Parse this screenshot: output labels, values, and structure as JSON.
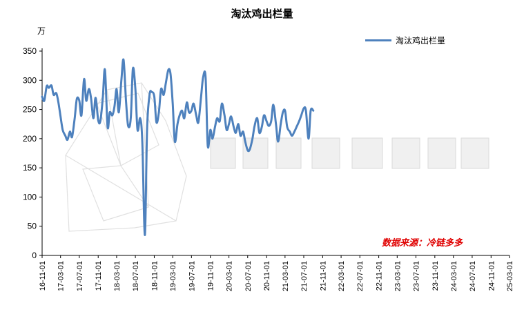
{
  "chart_data": {
    "type": "line",
    "title": "淘汰鸡出栏量",
    "unit_label": "万",
    "ylim": [
      0,
      350
    ],
    "yticks": [
      0,
      50,
      100,
      150,
      200,
      250,
      300,
      350
    ],
    "x_tick_labels": [
      "16-11-01",
      "17-03-01",
      "17-07-01",
      "17-11-01",
      "18-03-01",
      "18-07-01",
      "18-11-01",
      "19-03-01",
      "19-07-01",
      "19-11-01",
      "20-03-01",
      "20-07-01",
      "20-11-01",
      "21-03-01",
      "21-07-01",
      "21-11-01",
      "22-03-01",
      "22-07-01",
      "22-11-01",
      "23-03-01",
      "23-07-01",
      "23-11-01",
      "24-03-01",
      "24-07-01",
      "24-11-01",
      "25-03-01"
    ],
    "x_range": [
      "16-11-01",
      "25-03-01"
    ],
    "legend_position": "top-right",
    "grid": false,
    "series": [
      {
        "name": "淘汰鸡出栏量",
        "color": "#4e81bd",
        "points": [
          [
            "16-11-01",
            272
          ],
          [
            "16-11-15",
            265
          ],
          [
            "16-12-01",
            290
          ],
          [
            "16-12-15",
            287
          ],
          [
            "17-01-01",
            291
          ],
          [
            "17-01-15",
            275
          ],
          [
            "17-02-01",
            278
          ],
          [
            "17-02-15",
            262
          ],
          [
            "17-03-01",
            238
          ],
          [
            "17-03-15",
            215
          ],
          [
            "17-04-01",
            205
          ],
          [
            "17-04-15",
            198
          ],
          [
            "17-05-01",
            212
          ],
          [
            "17-05-15",
            203
          ],
          [
            "17-06-01",
            235
          ],
          [
            "17-06-15",
            268
          ],
          [
            "17-07-01",
            265
          ],
          [
            "17-07-15",
            240
          ],
          [
            "17-08-01",
            302
          ],
          [
            "17-08-15",
            265
          ],
          [
            "17-09-01",
            285
          ],
          [
            "17-09-15",
            270
          ],
          [
            "17-10-01",
            235
          ],
          [
            "17-10-15",
            270
          ],
          [
            "17-11-01",
            232
          ],
          [
            "17-11-15",
            230
          ],
          [
            "17-12-01",
            270
          ],
          [
            "17-12-15",
            318
          ],
          [
            "18-01-01",
            220
          ],
          [
            "18-01-15",
            245
          ],
          [
            "18-02-01",
            240
          ],
          [
            "18-02-15",
            255
          ],
          [
            "18-03-01",
            285
          ],
          [
            "18-03-15",
            245
          ],
          [
            "18-04-01",
            300
          ],
          [
            "18-04-15",
            335
          ],
          [
            "18-05-01",
            265
          ],
          [
            "18-05-15",
            222
          ],
          [
            "18-06-01",
            235
          ],
          [
            "18-06-15",
            320
          ],
          [
            "18-07-01",
            285
          ],
          [
            "18-07-15",
            215
          ],
          [
            "18-08-01",
            235
          ],
          [
            "18-08-15",
            195
          ],
          [
            "18-09-01",
            35
          ],
          [
            "18-09-15",
            215
          ],
          [
            "18-10-01",
            275
          ],
          [
            "18-10-15",
            280
          ],
          [
            "18-11-01",
            272
          ],
          [
            "18-11-15",
            228
          ],
          [
            "18-12-01",
            245
          ],
          [
            "18-12-15",
            285
          ],
          [
            "19-01-01",
            275
          ],
          [
            "19-01-15",
            295
          ],
          [
            "19-02-01",
            318
          ],
          [
            "19-02-15",
            310
          ],
          [
            "19-03-01",
            260
          ],
          [
            "19-03-15",
            195
          ],
          [
            "19-04-01",
            225
          ],
          [
            "19-04-15",
            240
          ],
          [
            "19-05-01",
            248
          ],
          [
            "19-05-15",
            235
          ],
          [
            "19-06-01",
            262
          ],
          [
            "19-06-15",
            245
          ],
          [
            "19-07-01",
            248
          ],
          [
            "19-07-15",
            260
          ],
          [
            "19-08-01",
            240
          ],
          [
            "19-08-15",
            228
          ],
          [
            "19-09-01",
            270
          ],
          [
            "19-09-15",
            305
          ],
          [
            "19-10-01",
            305
          ],
          [
            "19-10-15",
            188
          ],
          [
            "19-11-01",
            215
          ],
          [
            "19-11-15",
            200
          ],
          [
            "19-12-01",
            220
          ],
          [
            "19-12-15",
            235
          ],
          [
            "20-01-01",
            230
          ],
          [
            "20-01-15",
            260
          ],
          [
            "20-02-01",
            240
          ],
          [
            "20-02-15",
            215
          ],
          [
            "20-03-01",
            225
          ],
          [
            "20-03-15",
            238
          ],
          [
            "20-04-01",
            220
          ],
          [
            "20-04-15",
            210
          ],
          [
            "20-05-01",
            225
          ],
          [
            "20-05-15",
            205
          ],
          [
            "20-06-01",
            212
          ],
          [
            "20-06-15",
            195
          ],
          [
            "20-07-01",
            180
          ],
          [
            "20-07-15",
            182
          ],
          [
            "20-08-01",
            200
          ],
          [
            "20-08-15",
            222
          ],
          [
            "20-09-01",
            235
          ],
          [
            "20-09-15",
            210
          ],
          [
            "20-10-01",
            220
          ],
          [
            "20-10-15",
            240
          ],
          [
            "20-11-01",
            230
          ],
          [
            "20-11-15",
            222
          ],
          [
            "20-12-01",
            230
          ],
          [
            "20-12-15",
            258
          ],
          [
            "21-01-01",
            225
          ],
          [
            "21-01-15",
            195
          ],
          [
            "21-02-01",
            225
          ],
          [
            "21-02-15",
            245
          ],
          [
            "21-03-01",
            248
          ],
          [
            "21-03-15",
            220
          ],
          [
            "21-04-01",
            212
          ],
          [
            "21-04-15",
            205
          ],
          [
            "21-05-01",
            212
          ],
          [
            "21-05-15",
            220
          ],
          [
            "21-06-01",
            230
          ],
          [
            "21-06-15",
            240
          ],
          [
            "21-07-01",
            252
          ],
          [
            "21-07-15",
            248
          ],
          [
            "21-08-01",
            200
          ],
          [
            "21-08-15",
            248
          ],
          [
            "21-09-01",
            248
          ]
        ]
      }
    ],
    "source_note": "数据来源：冷链多多"
  }
}
